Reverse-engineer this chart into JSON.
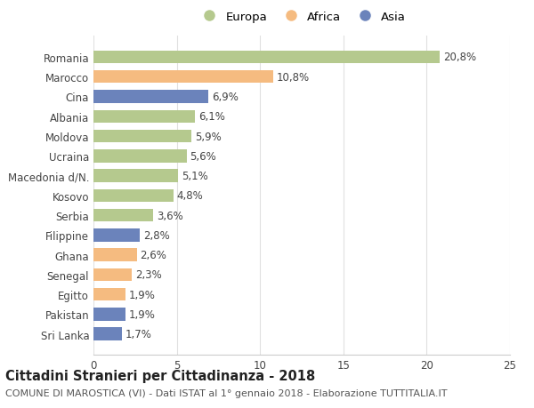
{
  "categories": [
    "Romania",
    "Marocco",
    "Cina",
    "Albania",
    "Moldova",
    "Ucraina",
    "Macedonia d/N.",
    "Kosovo",
    "Serbia",
    "Filippine",
    "Ghana",
    "Senegal",
    "Egitto",
    "Pakistan",
    "Sri Lanka"
  ],
  "values": [
    20.8,
    10.8,
    6.9,
    6.1,
    5.9,
    5.6,
    5.1,
    4.8,
    3.6,
    2.8,
    2.6,
    2.3,
    1.9,
    1.9,
    1.7
  ],
  "labels": [
    "20,8%",
    "10,8%",
    "6,9%",
    "6,1%",
    "5,9%",
    "5,6%",
    "5,1%",
    "4,8%",
    "3,6%",
    "2,8%",
    "2,6%",
    "2,3%",
    "1,9%",
    "1,9%",
    "1,7%"
  ],
  "colors": [
    "#b5c98e",
    "#f5bb80",
    "#6b83bb",
    "#b5c98e",
    "#b5c98e",
    "#b5c98e",
    "#b5c98e",
    "#b5c98e",
    "#b5c98e",
    "#6b83bb",
    "#f5bb80",
    "#f5bb80",
    "#f5bb80",
    "#6b83bb",
    "#6b83bb"
  ],
  "legend_labels": [
    "Europa",
    "Africa",
    "Asia"
  ],
  "legend_colors": [
    "#b5c98e",
    "#f5bb80",
    "#6b83bb"
  ],
  "xlim": [
    0,
    25
  ],
  "xticks": [
    0,
    5,
    10,
    15,
    20,
    25
  ],
  "title": "Cittadini Stranieri per Cittadinanza - 2018",
  "subtitle": "COMUNE DI MAROSTICA (VI) - Dati ISTAT al 1° gennaio 2018 - Elaborazione TUTTITALIA.IT",
  "bg_color": "#ffffff",
  "bar_height": 0.65,
  "label_fontsize": 8.5,
  "tick_fontsize": 8.5,
  "legend_fontsize": 9.5,
  "title_fontsize": 10.5,
  "subtitle_fontsize": 8
}
